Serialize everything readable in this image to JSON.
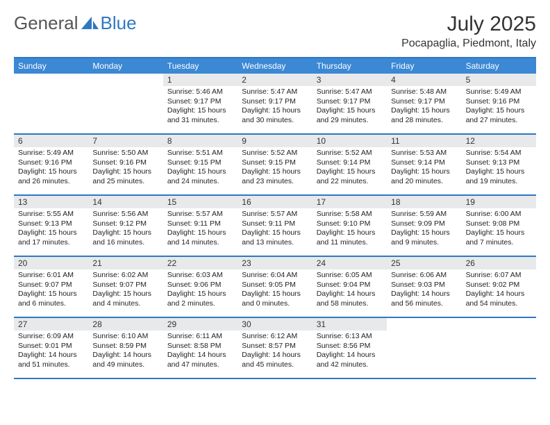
{
  "brand": {
    "text1": "General",
    "text2": "Blue"
  },
  "title": "July 2025",
  "location": "Pocapaglia, Piedmont, Italy",
  "colors": {
    "header_bg": "#3b88d4",
    "border": "#2f78c1",
    "daynum_bg": "#e7e9eb",
    "text": "#222222"
  },
  "day_names": [
    "Sunday",
    "Monday",
    "Tuesday",
    "Wednesday",
    "Thursday",
    "Friday",
    "Saturday"
  ],
  "weeks": [
    [
      null,
      null,
      {
        "n": "1",
        "sr": "5:46 AM",
        "ss": "9:17 PM",
        "dl": "15 hours and 31 minutes."
      },
      {
        "n": "2",
        "sr": "5:47 AM",
        "ss": "9:17 PM",
        "dl": "15 hours and 30 minutes."
      },
      {
        "n": "3",
        "sr": "5:47 AM",
        "ss": "9:17 PM",
        "dl": "15 hours and 29 minutes."
      },
      {
        "n": "4",
        "sr": "5:48 AM",
        "ss": "9:17 PM",
        "dl": "15 hours and 28 minutes."
      },
      {
        "n": "5",
        "sr": "5:49 AM",
        "ss": "9:16 PM",
        "dl": "15 hours and 27 minutes."
      }
    ],
    [
      {
        "n": "6",
        "sr": "5:49 AM",
        "ss": "9:16 PM",
        "dl": "15 hours and 26 minutes."
      },
      {
        "n": "7",
        "sr": "5:50 AM",
        "ss": "9:16 PM",
        "dl": "15 hours and 25 minutes."
      },
      {
        "n": "8",
        "sr": "5:51 AM",
        "ss": "9:15 PM",
        "dl": "15 hours and 24 minutes."
      },
      {
        "n": "9",
        "sr": "5:52 AM",
        "ss": "9:15 PM",
        "dl": "15 hours and 23 minutes."
      },
      {
        "n": "10",
        "sr": "5:52 AM",
        "ss": "9:14 PM",
        "dl": "15 hours and 22 minutes."
      },
      {
        "n": "11",
        "sr": "5:53 AM",
        "ss": "9:14 PM",
        "dl": "15 hours and 20 minutes."
      },
      {
        "n": "12",
        "sr": "5:54 AM",
        "ss": "9:13 PM",
        "dl": "15 hours and 19 minutes."
      }
    ],
    [
      {
        "n": "13",
        "sr": "5:55 AM",
        "ss": "9:13 PM",
        "dl": "15 hours and 17 minutes."
      },
      {
        "n": "14",
        "sr": "5:56 AM",
        "ss": "9:12 PM",
        "dl": "15 hours and 16 minutes."
      },
      {
        "n": "15",
        "sr": "5:57 AM",
        "ss": "9:11 PM",
        "dl": "15 hours and 14 minutes."
      },
      {
        "n": "16",
        "sr": "5:57 AM",
        "ss": "9:11 PM",
        "dl": "15 hours and 13 minutes."
      },
      {
        "n": "17",
        "sr": "5:58 AM",
        "ss": "9:10 PM",
        "dl": "15 hours and 11 minutes."
      },
      {
        "n": "18",
        "sr": "5:59 AM",
        "ss": "9:09 PM",
        "dl": "15 hours and 9 minutes."
      },
      {
        "n": "19",
        "sr": "6:00 AM",
        "ss": "9:08 PM",
        "dl": "15 hours and 7 minutes."
      }
    ],
    [
      {
        "n": "20",
        "sr": "6:01 AM",
        "ss": "9:07 PM",
        "dl": "15 hours and 6 minutes."
      },
      {
        "n": "21",
        "sr": "6:02 AM",
        "ss": "9:07 PM",
        "dl": "15 hours and 4 minutes."
      },
      {
        "n": "22",
        "sr": "6:03 AM",
        "ss": "9:06 PM",
        "dl": "15 hours and 2 minutes."
      },
      {
        "n": "23",
        "sr": "6:04 AM",
        "ss": "9:05 PM",
        "dl": "15 hours and 0 minutes."
      },
      {
        "n": "24",
        "sr": "6:05 AM",
        "ss": "9:04 PM",
        "dl": "14 hours and 58 minutes."
      },
      {
        "n": "25",
        "sr": "6:06 AM",
        "ss": "9:03 PM",
        "dl": "14 hours and 56 minutes."
      },
      {
        "n": "26",
        "sr": "6:07 AM",
        "ss": "9:02 PM",
        "dl": "14 hours and 54 minutes."
      }
    ],
    [
      {
        "n": "27",
        "sr": "6:09 AM",
        "ss": "9:01 PM",
        "dl": "14 hours and 51 minutes."
      },
      {
        "n": "28",
        "sr": "6:10 AM",
        "ss": "8:59 PM",
        "dl": "14 hours and 49 minutes."
      },
      {
        "n": "29",
        "sr": "6:11 AM",
        "ss": "8:58 PM",
        "dl": "14 hours and 47 minutes."
      },
      {
        "n": "30",
        "sr": "6:12 AM",
        "ss": "8:57 PM",
        "dl": "14 hours and 45 minutes."
      },
      {
        "n": "31",
        "sr": "6:13 AM",
        "ss": "8:56 PM",
        "dl": "14 hours and 42 minutes."
      },
      null,
      null
    ]
  ],
  "labels": {
    "sunrise": "Sunrise:",
    "sunset": "Sunset:",
    "daylight": "Daylight:"
  }
}
